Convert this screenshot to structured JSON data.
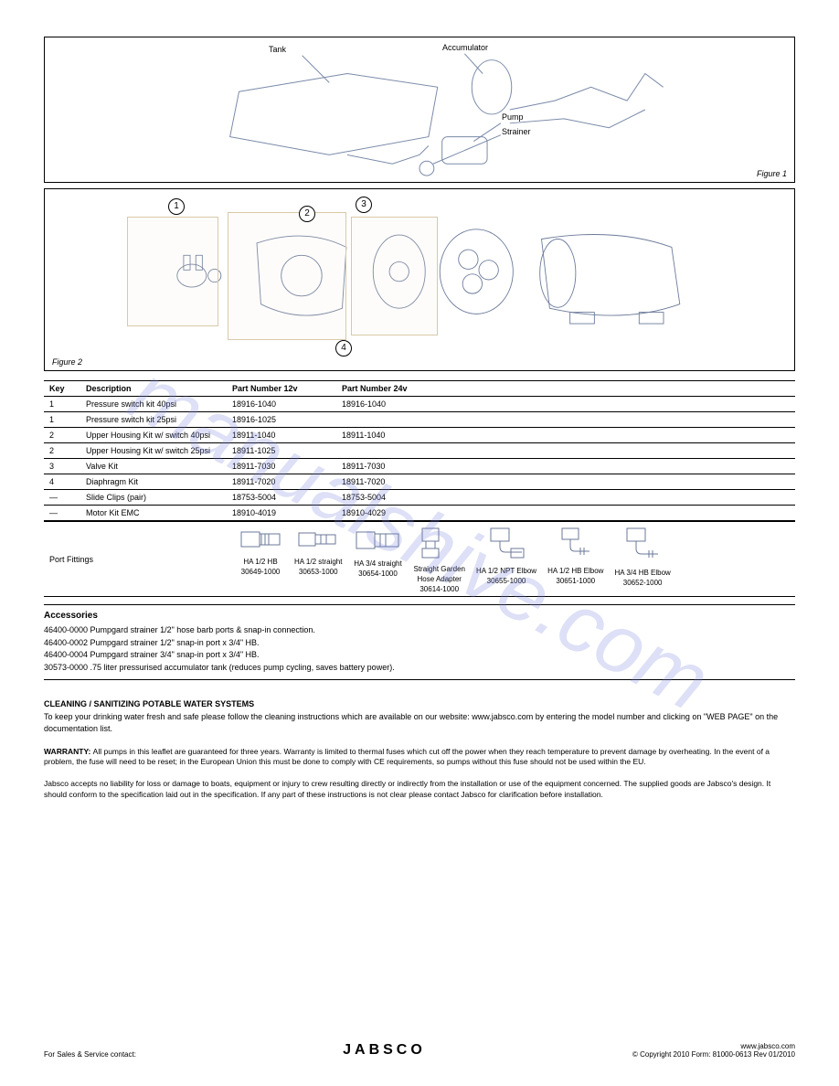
{
  "figure1": {
    "caption_right": "Figure 1",
    "labels": {
      "tank": "Tank",
      "accumulator": "Accumulator",
      "pump": "Pump",
      "strainer": "Strainer"
    }
  },
  "figure2": {
    "caption_left": "Figure 2",
    "circles": {
      "one": "1",
      "two": "2",
      "three": "3",
      "four": "4"
    }
  },
  "parts_table": {
    "headers": {
      "key": "Key",
      "desc": "Description",
      "part12": "Part Number 12v",
      "part24": "Part Number 24v"
    },
    "rows": [
      {
        "key": "1",
        "desc": "Pressure switch kit 40psi",
        "p12": "18916-1040",
        "p24": "18916-1040"
      },
      {
        "key": "1",
        "desc": "Pressure switch kit 25psi",
        "p12": "18916-1025",
        "p24": ""
      },
      {
        "key": "2",
        "desc": "Upper Housing Kit w/ switch 40psi",
        "p12": "18911-1040",
        "p24": "18911-1040"
      },
      {
        "key": "2",
        "desc": "Upper Housing Kit w/ switch 25psi",
        "p12": "18911-1025",
        "p24": ""
      },
      {
        "key": "3",
        "desc": "Valve Kit",
        "p12": "18911-7030",
        "p24": "18911-7030"
      },
      {
        "key": "4",
        "desc": "Diaphragm Kit",
        "p12": "18911-7020",
        "p24": "18911-7020"
      },
      {
        "key": "—",
        "desc": "Slide Clips (pair)",
        "p12": "18753-5004",
        "p24": "18753-5004"
      },
      {
        "key": "—",
        "desc": "Motor Kit EMC",
        "p12": "18910-4019",
        "p24": "18910-4029"
      }
    ]
  },
  "fittings": {
    "header": "Port Fittings",
    "items": [
      {
        "label1": "HA 1/2 HB",
        "label2": "30649-1000"
      },
      {
        "label1": "HA 1/2 straight",
        "label2": "30653-1000"
      },
      {
        "label1": "HA 3/4 straight",
        "label2": "30654-1000"
      },
      {
        "label1": "Straight Garden",
        "label2": "Hose Adapter",
        "label3": "30614-1000"
      },
      {
        "label1": "HA 1/2 NPT Elbow",
        "label2": "30655-1000"
      },
      {
        "label1": "HA 1/2 HB Elbow",
        "label2": "30651-1000"
      },
      {
        "label1": "HA 3/4 HB Elbow",
        "label2": "30652-1000"
      }
    ]
  },
  "accessories": {
    "title": "Accessories",
    "lines": [
      "46400-0000  Pumpgard strainer 1/2\" hose barb ports & snap-in connection.",
      "46400-0002  Pumpgard strainer 1/2\" snap-in port x 3/4\" HB.",
      "46400-0004  Pumpgard strainer 3/4\" snap-in port x 3/4\" HB.",
      "30573-0000  .75 liter pressurised accumulator tank (reduces pump cycling, saves battery power)."
    ]
  },
  "cleaning": {
    "title": "CLEANING / SANITIZING POTABLE WATER SYSTEMS",
    "body": "To keep your drinking water fresh and safe please follow the cleaning instructions which are available on our website: www.jabsco.com by entering the model number and clicking on \"WEB PAGE\" on the documentation list."
  },
  "warranty": {
    "title": "WARRANTY: ",
    "body1": "All pumps in this leaflet are guaranteed for three years. Warranty is limited to thermal fuses which cut off the power when they reach temperature to prevent damage by overheating. In the event of a problem, the fuse will need to be reset; in the European Union this must be done to comply with CE requirements, so pumps without this fuse should not be used within the EU.",
    "body2": "Jabsco accepts no liability for loss or damage to boats, equipment or injury to crew resulting directly or indirectly from the installation or use of the equipment concerned. The supplied goods are Jabsco's design. It should conform to the specification laid out in the specification. If any part of these instructions is not clear please contact Jabsco for clarification before installation."
  },
  "footer": {
    "left": "For Sales & Service contact:",
    "center_brand": "JABSCO",
    "right_text": "www.jabsco.com",
    "copyright": "© Copyright 2010  Form: 81000-0613  Rev 01/2010"
  },
  "watermark": "manualshive.com",
  "colors": {
    "line": "#6b7a99",
    "box": "#d9c9a8",
    "watermark": "rgba(120,130,220,0.25)"
  }
}
